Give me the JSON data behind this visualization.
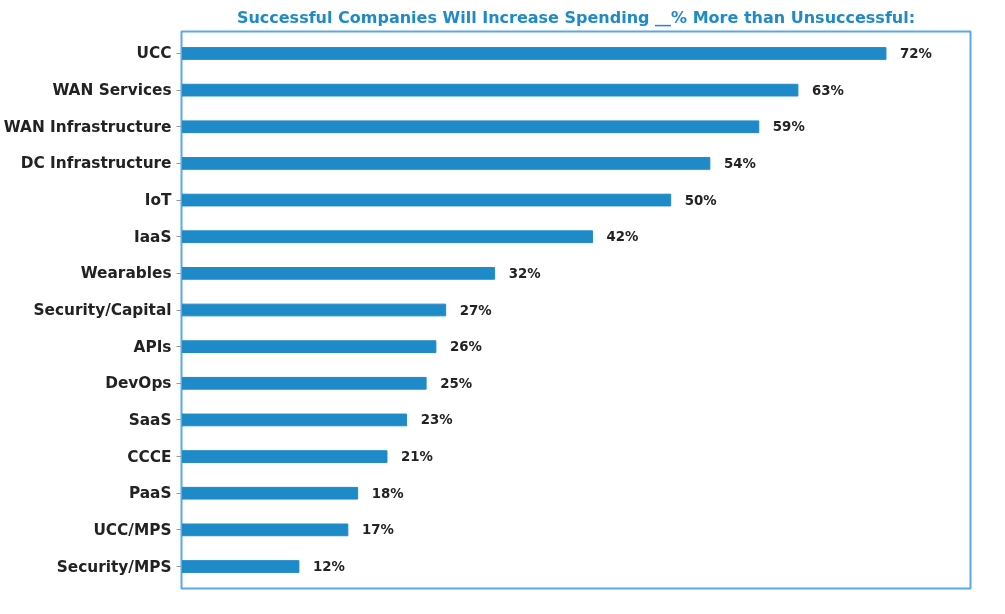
{
  "chart_data": {
    "type": "bar",
    "orientation": "horizontal",
    "title": "Successful Companies Will Increase Spending __% More than Unsuccessful:",
    "categories": [
      "UCC",
      "WAN Services",
      "WAN Infrastructure",
      "DC Infrastructure",
      "IoT",
      "IaaS",
      "Wearables",
      "Security/Capital",
      "APIs",
      "DevOps",
      "SaaS",
      "CCCE",
      "PaaS",
      "UCC/MPS",
      "Security/MPS"
    ],
    "values": [
      72,
      63,
      59,
      54,
      50,
      42,
      32,
      27,
      26,
      25,
      23,
      21,
      18,
      17,
      12
    ],
    "value_labels": [
      "72%",
      "63%",
      "59%",
      "54%",
      "50%",
      "42%",
      "32%",
      "27%",
      "26%",
      "25%",
      "23%",
      "21%",
      "18%",
      "17%",
      "12%"
    ],
    "color": "#1f8ac8",
    "tick_labels": "y",
    "grid": false
  }
}
